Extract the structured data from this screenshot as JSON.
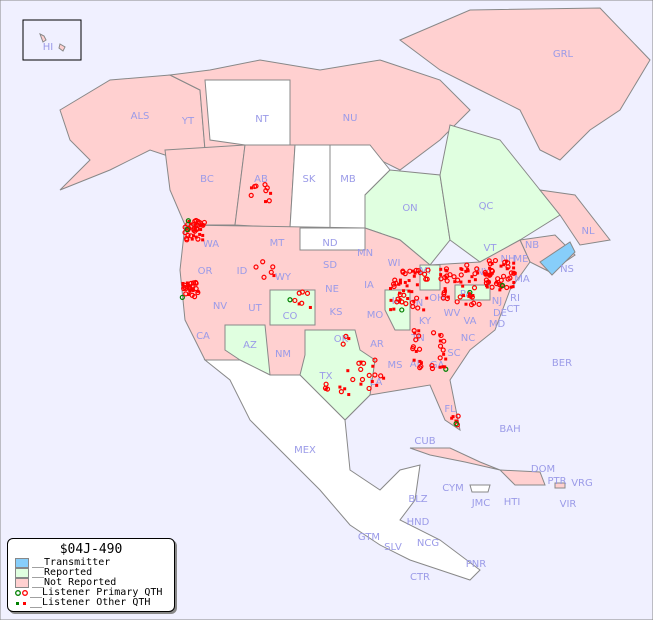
{
  "map": {
    "labels": [
      "HI",
      "ALS",
      "YT",
      "NT",
      "NU",
      "GRL",
      "BC",
      "AB",
      "SK",
      "MB",
      "ON",
      "QC",
      "NL",
      "NS",
      "NB",
      "WA",
      "OR",
      "ID",
      "MT",
      "ND",
      "SD",
      "WY",
      "NE",
      "MN",
      "WI",
      "IA",
      "IL",
      "IN",
      "OH",
      "MI",
      "PA",
      "NY",
      "VT",
      "NH",
      "ME",
      "MA",
      "CT",
      "RI",
      "NJ",
      "DE",
      "MD",
      "VA",
      "WV",
      "KY",
      "TN",
      "NC",
      "SC",
      "GA",
      "AL",
      "MS",
      "LA",
      "AR",
      "MO",
      "KS",
      "OK",
      "TX",
      "NM",
      "AZ",
      "CO",
      "UT",
      "NV",
      "CA",
      "FL",
      "MEX",
      "CUB",
      "BAH",
      "BER",
      "DOM",
      "PTR",
      "VRG",
      "VIR",
      "CYM",
      "JMC",
      "HTI",
      "BLZ",
      "GTM",
      "HND",
      "SLV",
      "NCG",
      "CTR",
      "PNR"
    ],
    "colors": {
      "ocean": "#f0f0ff",
      "transmitter": "#87cefa",
      "reported": "#e0ffe0",
      "not_reported": "#ffd0d0",
      "unlisted": "#ffffff",
      "primary_qth_reported": "#008000",
      "primary_qth": "#ff0000",
      "other_qth": "#ff0000"
    }
  },
  "legend": {
    "title": "$04J-490",
    "items": [
      {
        "label": "__Transmitter",
        "color": "#87cefa"
      },
      {
        "label": "__Reported",
        "color": "#e0ffe0"
      },
      {
        "label": "__Not Reported",
        "color": "#ffd0d0"
      },
      {
        "label": "__Listener Primary QTH"
      },
      {
        "label": "__Listener Other QTH"
      }
    ]
  }
}
